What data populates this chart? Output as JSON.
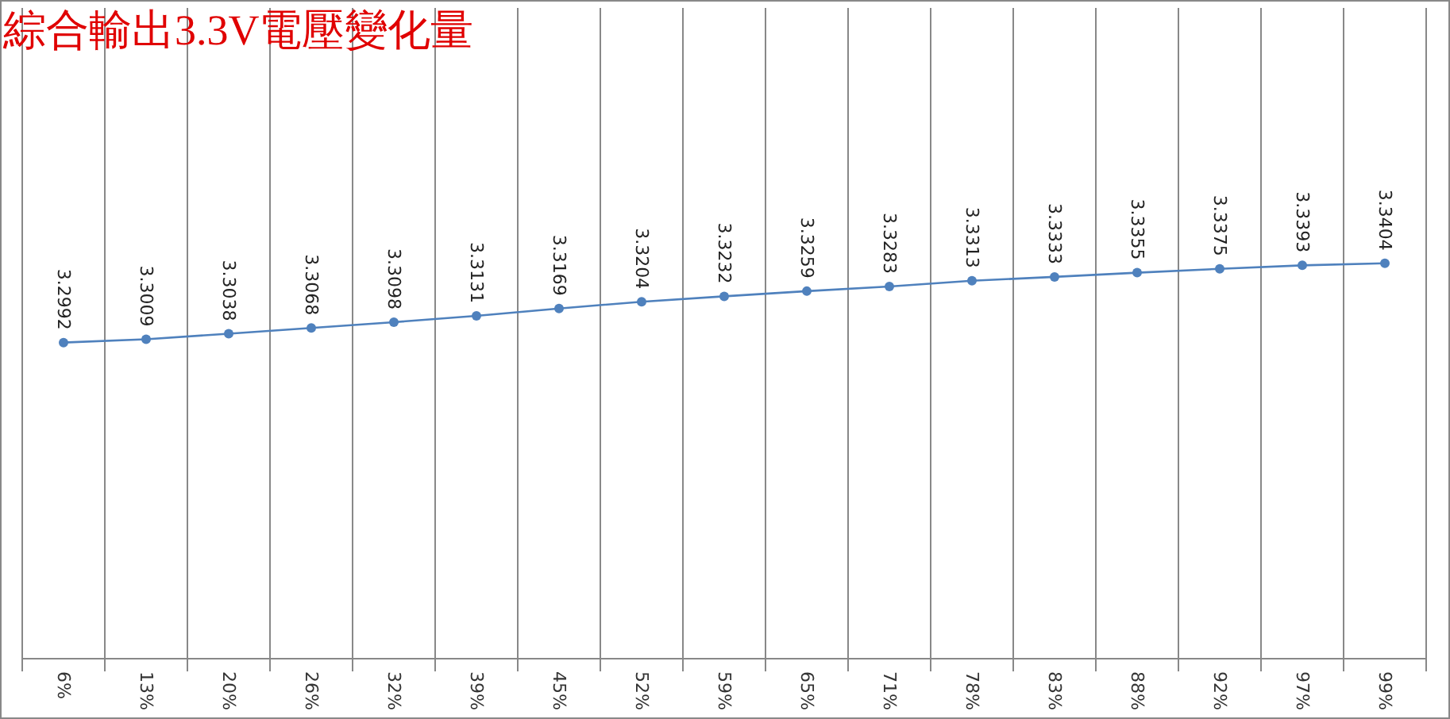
{
  "chart_data": {
    "type": "line",
    "title": "綜合輸出3.3V電壓變化量",
    "categories": [
      "6%",
      "13%",
      "20%",
      "26%",
      "32%",
      "39%",
      "45%",
      "52%",
      "59%",
      "65%",
      "71%",
      "78%",
      "83%",
      "88%",
      "92%",
      "97%",
      "99%"
    ],
    "series": [
      {
        "color": "#4f81bd",
        "values": [
          3.2992,
          3.3009,
          3.3038,
          3.3068,
          3.3098,
          3.3131,
          3.3169,
          3.3204,
          3.3232,
          3.3259,
          3.3283,
          3.3313,
          3.3333,
          3.3355,
          3.3375,
          3.3393,
          3.3404
        ]
      }
    ],
    "ylim": [
      3.135,
      3.473
    ],
    "tick_labels": "x",
    "grid": "x",
    "data_labels": true,
    "marker": "circle",
    "line_style": "solid"
  }
}
